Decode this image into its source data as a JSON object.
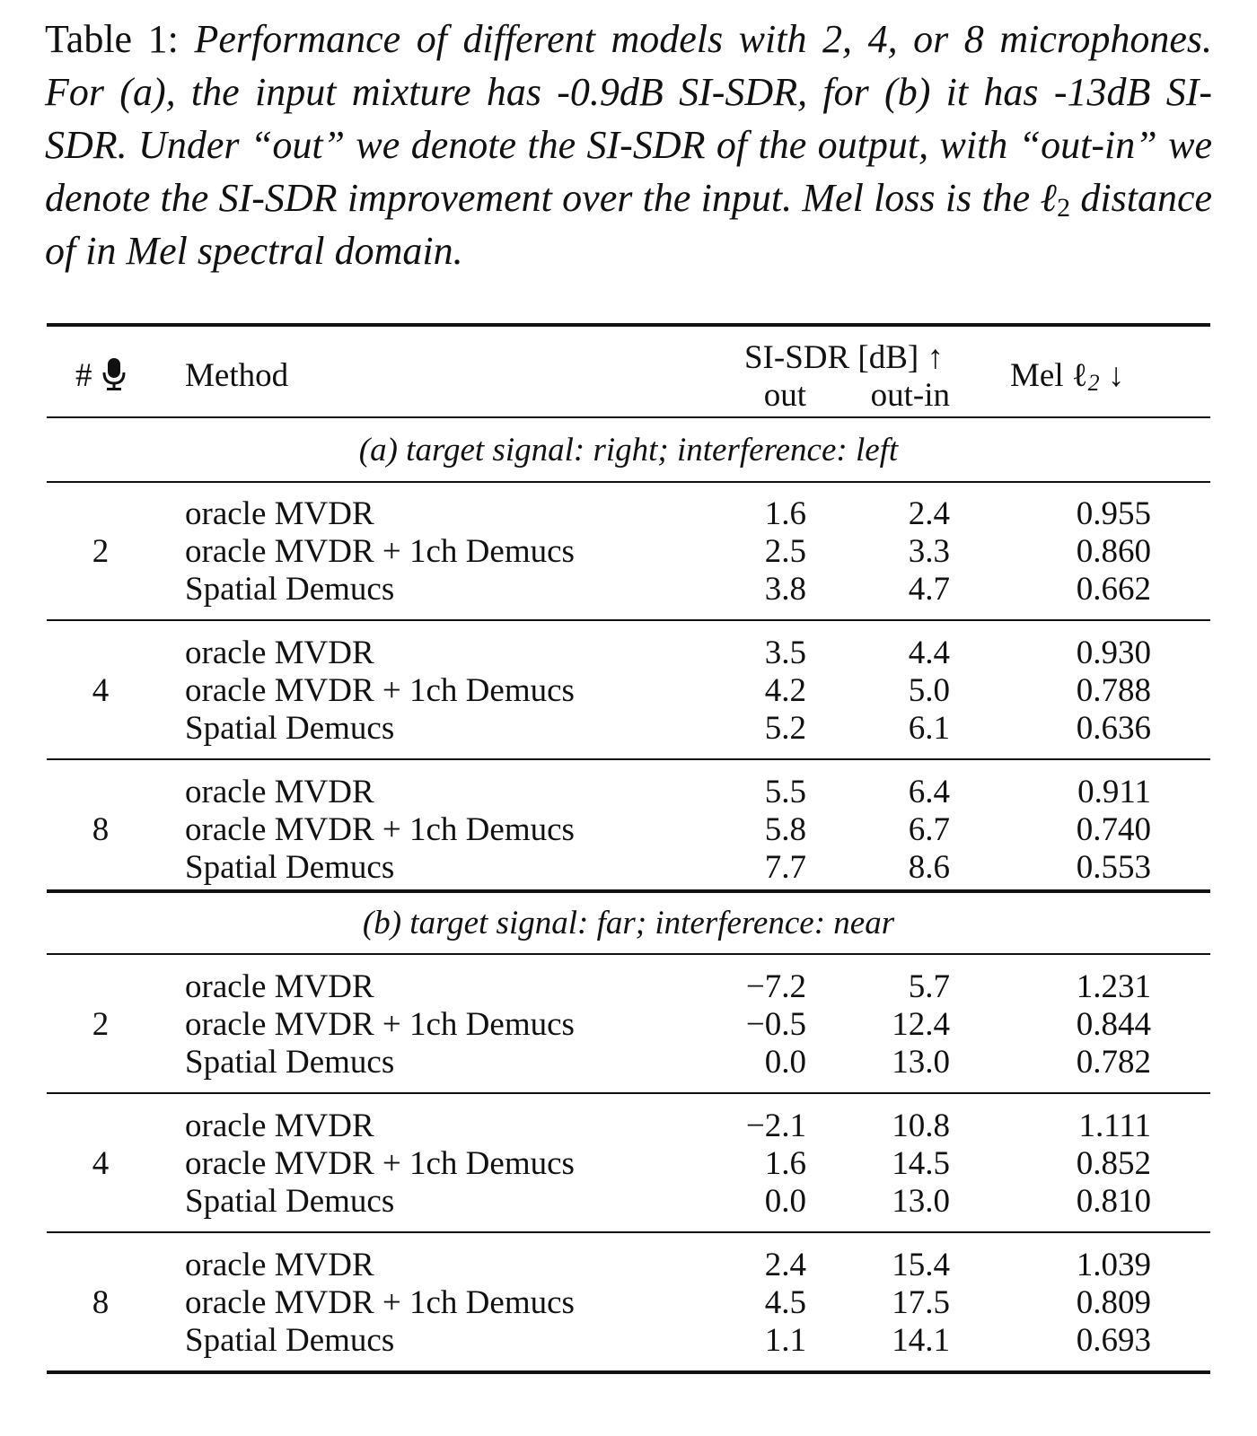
{
  "caption": {
    "label": "Table 1:",
    "text_before": "Performance of different models with 2, 4, or 8 microphones. For (a), the input mixture has -0.9dB SI-SDR, for (b) it has -13dB SI-SDR. Under “out” we denote the SI-SDR of the output, with “out-in” we denote the SI-SDR improvement over the input. Mel loss is the ",
    "ell": "ℓ",
    "ell_sub": "2",
    "text_after": " distance of in Mel spectral domain."
  },
  "header": {
    "mics": "#",
    "mic_icon": "microphone-icon",
    "method": "Method",
    "sisdr": "SI-SDR [dB] ↑",
    "out": "out",
    "out_in": "out-in",
    "mel": "Mel ℓ",
    "mel_sub": "2",
    "mel_arrow": "↓"
  },
  "sections": [
    {
      "title": "(a) target signal: right; interference: left",
      "groups": [
        {
          "mics": "2",
          "rows": [
            {
              "method": "oracle MVDR",
              "out": "1.6",
              "out_in": "2.4",
              "mel": "0.955"
            },
            {
              "method": "oracle MVDR + 1ch Demucs",
              "out": "2.5",
              "out_in": "3.3",
              "mel": "0.860"
            },
            {
              "method": "Spatial Demucs",
              "out": "3.8",
              "out_in": "4.7",
              "mel": "0.662"
            }
          ]
        },
        {
          "mics": "4",
          "rows": [
            {
              "method": "oracle MVDR",
              "out": "3.5",
              "out_in": "4.4",
              "mel": "0.930"
            },
            {
              "method": "oracle MVDR + 1ch Demucs",
              "out": "4.2",
              "out_in": "5.0",
              "mel": "0.788"
            },
            {
              "method": "Spatial Demucs",
              "out": "5.2",
              "out_in": "6.1",
              "mel": "0.636"
            }
          ]
        },
        {
          "mics": "8",
          "rows": [
            {
              "method": "oracle MVDR",
              "out": "5.5",
              "out_in": "6.4",
              "mel": "0.911"
            },
            {
              "method": "oracle MVDR + 1ch Demucs",
              "out": "5.8",
              "out_in": "6.7",
              "mel": "0.740"
            },
            {
              "method": "Spatial Demucs",
              "out": "7.7",
              "out_in": "8.6",
              "mel": "0.553"
            }
          ]
        }
      ]
    },
    {
      "title": "(b) target signal: far; interference: near",
      "groups": [
        {
          "mics": "2",
          "rows": [
            {
              "method": "oracle MVDR",
              "out": "−7.2",
              "out_in": "5.7",
              "mel": "1.231"
            },
            {
              "method": "oracle MVDR + 1ch Demucs",
              "out": "−0.5",
              "out_in": "12.4",
              "mel": "0.844"
            },
            {
              "method": "Spatial Demucs",
              "out": "0.0",
              "out_in": "13.0",
              "mel": "0.782"
            }
          ]
        },
        {
          "mics": "4",
          "rows": [
            {
              "method": "oracle MVDR",
              "out": "−2.1",
              "out_in": "10.8",
              "mel": "1.111"
            },
            {
              "method": "oracle MVDR + 1ch Demucs",
              "out": "1.6",
              "out_in": "14.5",
              "mel": "0.852"
            },
            {
              "method": "Spatial Demucs",
              "out": "0.0",
              "out_in": "13.0",
              "mel": "0.810"
            }
          ]
        },
        {
          "mics": "8",
          "rows": [
            {
              "method": "oracle MVDR",
              "out": "2.4",
              "out_in": "15.4",
              "mel": "1.039"
            },
            {
              "method": "oracle MVDR + 1ch Demucs",
              "out": "4.5",
              "out_in": "17.5",
              "mel": "0.809"
            },
            {
              "method": "Spatial Demucs",
              "out": "1.1",
              "out_in": "14.1",
              "mel": "0.693"
            }
          ]
        }
      ]
    }
  ]
}
